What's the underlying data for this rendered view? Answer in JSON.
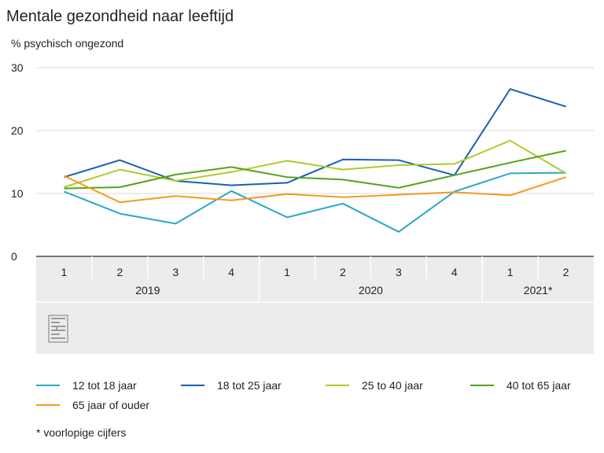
{
  "header": {
    "title": "Mentale gezondheid naar leeftijd",
    "subtitle": "% psychisch ongezond"
  },
  "footnote": "* voorlopige cijfers",
  "chart_data": {
    "type": "line",
    "title": "Mentale gezondheid naar leeftijd",
    "ylabel": "% psychisch ongezond",
    "ylim": [
      0,
      30
    ],
    "yticks": [
      0,
      10,
      20,
      30
    ],
    "grid": true,
    "legend_position": "bottom",
    "categories": [
      "1",
      "2",
      "3",
      "4",
      "1",
      "2",
      "3",
      "4",
      "1",
      "2"
    ],
    "groups": [
      {
        "label": "2019",
        "span": 4
      },
      {
        "label": "2020",
        "span": 4
      },
      {
        "label": "2021*",
        "span": 2
      }
    ],
    "series": [
      {
        "name": "12 tot 18 jaar",
        "color": "#29a8c8",
        "values": [
          10.3,
          6.8,
          5.2,
          10.4,
          6.2,
          8.4,
          3.9,
          10.3,
          13.2,
          13.3
        ]
      },
      {
        "name": "18 tot 25 jaar",
        "color": "#1a5fb4",
        "values": [
          12.6,
          15.3,
          12.0,
          11.3,
          11.7,
          15.4,
          15.3,
          12.9,
          26.6,
          23.8
        ]
      },
      {
        "name": "25 to 40 jaar",
        "color": "#afcb27",
        "values": [
          11.0,
          13.8,
          12.0,
          13.4,
          15.2,
          13.8,
          14.5,
          14.7,
          18.4,
          13.2
        ]
      },
      {
        "name": "40 tot 65 jaar",
        "color": "#53a31d",
        "values": [
          10.8,
          11.0,
          13.0,
          14.2,
          12.6,
          12.2,
          10.9,
          12.9,
          14.9,
          16.8
        ]
      },
      {
        "name": "65 jaar of ouder",
        "color": "#f39a1e",
        "values": [
          12.8,
          8.6,
          9.6,
          8.9,
          9.9,
          9.4,
          9.8,
          10.2,
          9.7,
          12.6
        ]
      }
    ]
  }
}
